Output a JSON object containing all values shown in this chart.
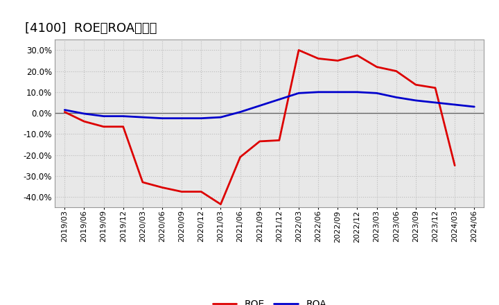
{
  "title": "[4100]  ROE、ROAの推移",
  "x_labels": [
    "2019/03",
    "2019/06",
    "2019/09",
    "2019/12",
    "2020/03",
    "2020/06",
    "2020/09",
    "2020/12",
    "2021/03",
    "2021/06",
    "2021/09",
    "2021/12",
    "2022/03",
    "2022/06",
    "2022/09",
    "2022/12",
    "2023/03",
    "2023/06",
    "2023/09",
    "2023/12",
    "2024/03",
    "2024/06"
  ],
  "roe": [
    0.5,
    -4.0,
    -6.5,
    -6.5,
    -33.0,
    -35.5,
    -37.5,
    -37.5,
    -43.5,
    -21.0,
    -13.5,
    -13.0,
    30.0,
    26.0,
    25.0,
    27.5,
    22.0,
    20.0,
    13.5,
    12.0,
    -25.0,
    null
  ],
  "roa": [
    1.5,
    -0.3,
    -1.5,
    -1.5,
    -2.0,
    -2.5,
    -2.5,
    -2.5,
    -2.0,
    0.5,
    3.5,
    6.5,
    9.5,
    10.0,
    10.0,
    10.0,
    9.5,
    7.5,
    6.0,
    5.0,
    4.0,
    3.0
  ],
  "ylim": [
    -45,
    35
  ],
  "yticks": [
    -40,
    -30,
    -20,
    -10,
    0,
    10,
    20,
    30
  ],
  "roe_color": "#dd0000",
  "roa_color": "#0000cc",
  "bg_color": "#ffffff",
  "plot_bg_color": "#e8e8e8",
  "grid_color": "#bbbbbb",
  "zero_line_color": "#666666",
  "title_fontsize": 13,
  "tick_fontsize": 8,
  "legend_fontsize": 10,
  "linewidth": 2.0
}
